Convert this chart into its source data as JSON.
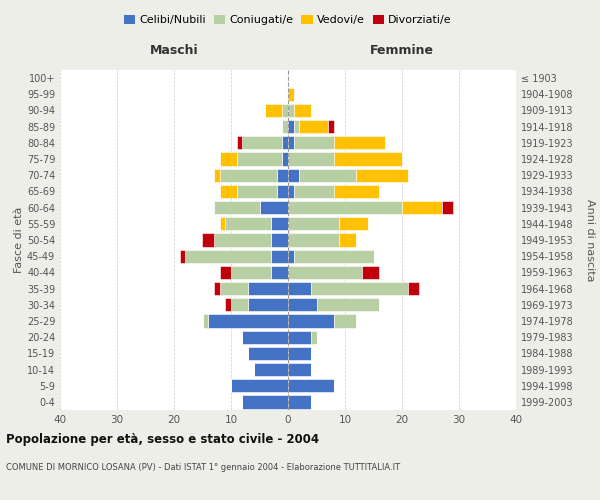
{
  "age_groups": [
    "0-4",
    "5-9",
    "10-14",
    "15-19",
    "20-24",
    "25-29",
    "30-34",
    "35-39",
    "40-44",
    "45-49",
    "50-54",
    "55-59",
    "60-64",
    "65-69",
    "70-74",
    "75-79",
    "80-84",
    "85-89",
    "90-94",
    "95-99",
    "100+"
  ],
  "birth_years": [
    "1999-2003",
    "1994-1998",
    "1989-1993",
    "1984-1988",
    "1979-1983",
    "1974-1978",
    "1969-1973",
    "1964-1968",
    "1959-1963",
    "1954-1958",
    "1949-1953",
    "1944-1948",
    "1939-1943",
    "1934-1938",
    "1929-1933",
    "1924-1928",
    "1919-1923",
    "1914-1918",
    "1909-1913",
    "1904-1908",
    "≤ 1903"
  ],
  "colors": {
    "celibi": "#4472c4",
    "coniugati": "#b8cfa4",
    "vedovi": "#ffc000",
    "divorziati": "#c0000b"
  },
  "maschi": {
    "celibi": [
      8,
      10,
      6,
      7,
      8,
      14,
      7,
      7,
      3,
      3,
      3,
      3,
      5,
      2,
      2,
      1,
      1,
      0,
      0,
      0,
      0
    ],
    "coniugati": [
      0,
      0,
      0,
      0,
      0,
      1,
      3,
      5,
      7,
      15,
      10,
      8,
      8,
      7,
      10,
      8,
      7,
      1,
      1,
      0,
      0
    ],
    "vedovi": [
      0,
      0,
      0,
      0,
      0,
      0,
      0,
      0,
      0,
      0,
      0,
      1,
      0,
      3,
      1,
      3,
      0,
      0,
      3,
      0,
      0
    ],
    "divorziati": [
      0,
      0,
      0,
      0,
      0,
      0,
      1,
      1,
      2,
      1,
      2,
      0,
      0,
      0,
      0,
      0,
      1,
      0,
      0,
      0,
      0
    ]
  },
  "femmine": {
    "celibi": [
      4,
      8,
      4,
      4,
      4,
      8,
      5,
      4,
      0,
      1,
      0,
      0,
      0,
      1,
      2,
      0,
      1,
      1,
      0,
      0,
      0
    ],
    "coniugati": [
      0,
      0,
      0,
      0,
      1,
      4,
      11,
      17,
      13,
      14,
      9,
      9,
      20,
      7,
      10,
      8,
      7,
      1,
      1,
      0,
      0
    ],
    "vedovi": [
      0,
      0,
      0,
      0,
      0,
      0,
      0,
      0,
      0,
      0,
      3,
      5,
      7,
      8,
      9,
      12,
      9,
      5,
      3,
      1,
      0
    ],
    "divorziati": [
      0,
      0,
      0,
      0,
      0,
      0,
      0,
      2,
      3,
      0,
      0,
      0,
      2,
      0,
      0,
      0,
      0,
      1,
      0,
      0,
      0
    ]
  },
  "xlim": 40,
  "title": "Popolazione per età, sesso e stato civile - 2004",
  "subtitle": "COMUNE DI MORNICO LOSANA (PV) - Dati ISTAT 1° gennaio 2004 - Elaborazione TUTTITALIA.IT",
  "ylabel": "Fasce di età",
  "ylabel2": "Anni di nascita",
  "xlabel_left": "Maschi",
  "xlabel_right": "Femmine",
  "legend_labels": [
    "Celibi/Nubili",
    "Coniugati/e",
    "Vedovi/e",
    "Divorziati/e"
  ],
  "background_color": "#eeeee8",
  "plot_bg": "#ffffff"
}
